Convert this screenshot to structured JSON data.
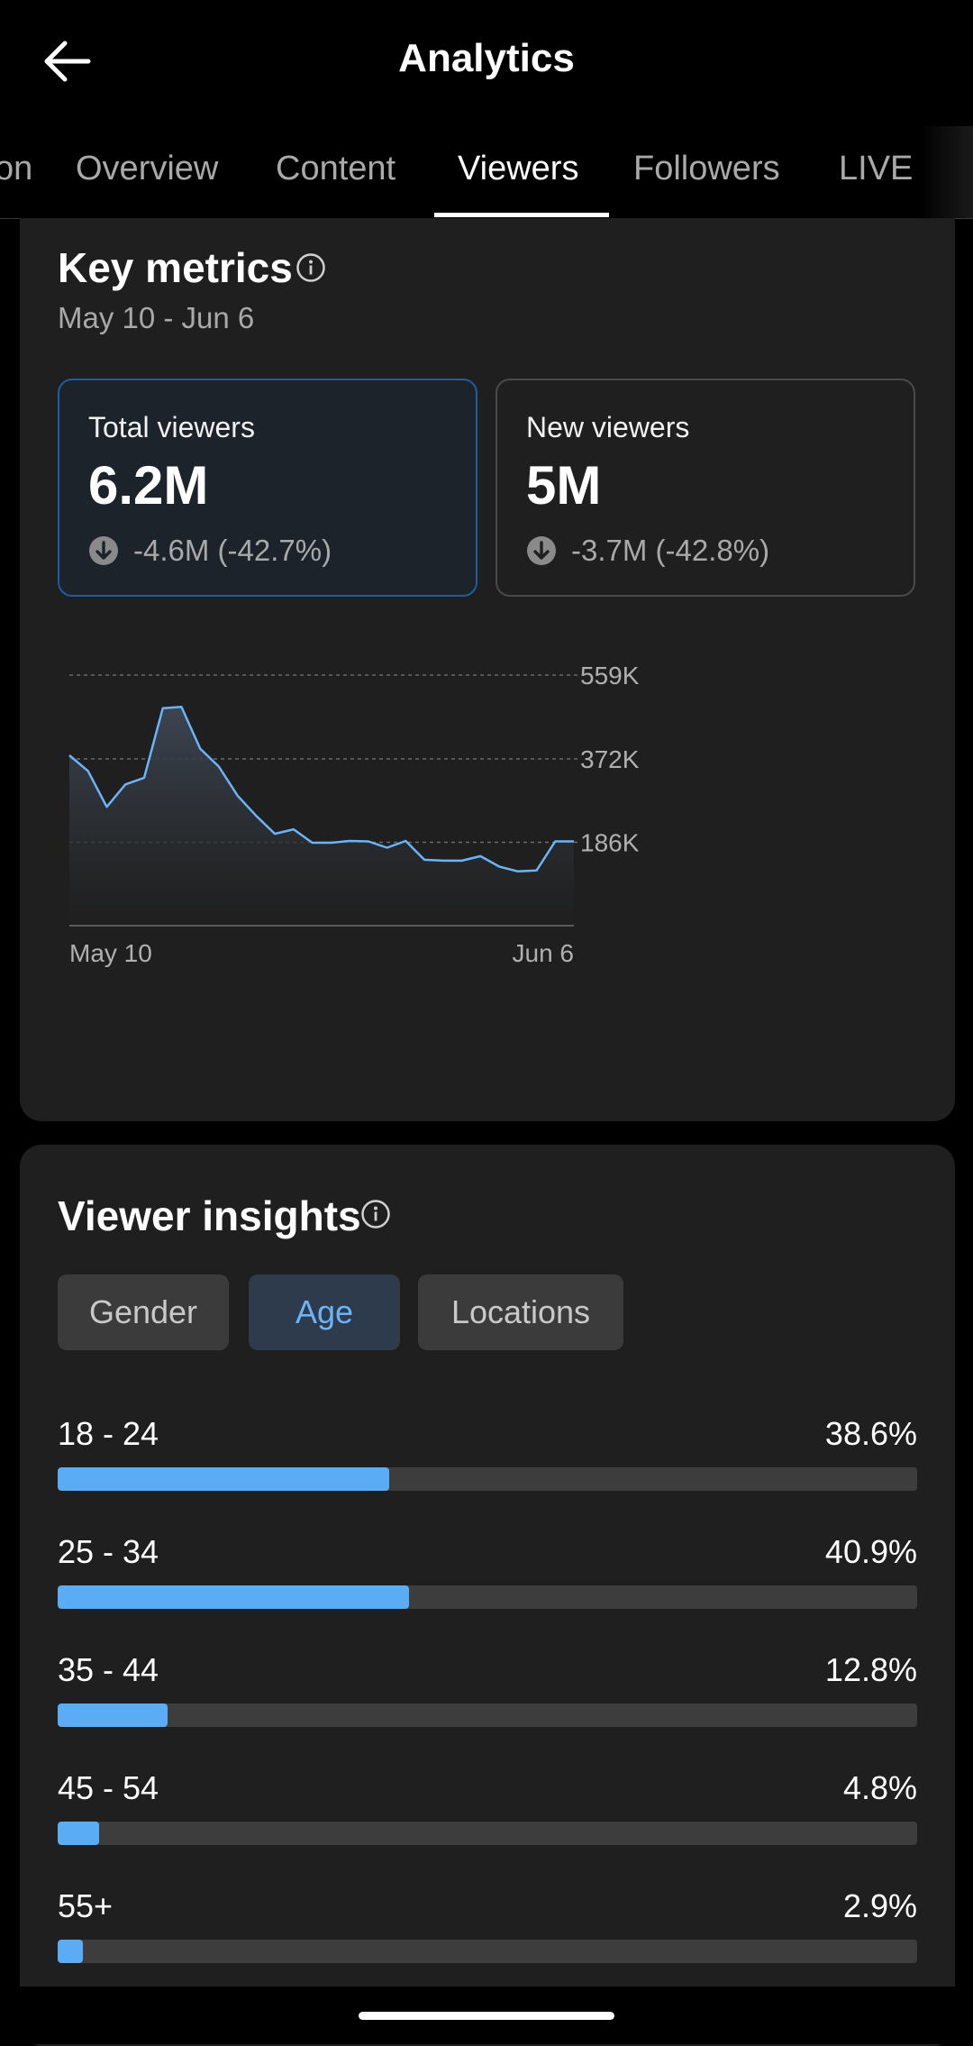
{
  "header": {
    "title": "Analytics",
    "back_icon": "arrow-left-icon"
  },
  "tabs": [
    {
      "label": "on",
      "active": false
    },
    {
      "label": "Overview",
      "active": false
    },
    {
      "label": "Content",
      "active": false
    },
    {
      "label": "Viewers",
      "active": true
    },
    {
      "label": "Followers",
      "active": false
    },
    {
      "label": "LIVE",
      "active": false
    }
  ],
  "key_metrics": {
    "title": "Key metrics",
    "date_range": "May 10 - Jun 6",
    "cards": [
      {
        "label": "Total viewers",
        "value": "6.2M",
        "change": "-4.6M (-42.7%)",
        "selected": true
      },
      {
        "label": "New viewers",
        "value": "5M",
        "change": "-3.7M (-42.8%)",
        "selected": false
      }
    ]
  },
  "chart_data": {
    "type": "area",
    "title": "",
    "xlabel": "",
    "ylabel": "",
    "x_tick_labels": [
      "May 10",
      "Jun 6"
    ],
    "y_tick_labels": [
      "559K",
      "372K",
      "186K"
    ],
    "y_ticks": [
      559000,
      372000,
      186000
    ],
    "ylim": [
      0,
      559000
    ],
    "grid": true,
    "line_color": "#6cb4f8",
    "series": [
      {
        "values": [
          380000,
          345000,
          265000,
          315000,
          330000,
          485000,
          488000,
          395000,
          355000,
          290000,
          245000,
          205000,
          215000,
          185000,
          185000,
          189000,
          188000,
          174000,
          189000,
          147000,
          145000,
          145000,
          155000,
          132000,
          121000,
          123000,
          188000,
          188000
        ]
      }
    ]
  },
  "viewer_insights": {
    "title": "Viewer insights",
    "chips": [
      {
        "label": "Gender",
        "active": false
      },
      {
        "label": "Age",
        "active": true
      },
      {
        "label": "Locations",
        "active": false
      }
    ],
    "age_groups": [
      {
        "label": "18 - 24",
        "percent": "38.6%",
        "value": 38.6
      },
      {
        "label": "25 - 34",
        "percent": "40.9%",
        "value": 40.9
      },
      {
        "label": "35 - 44",
        "percent": "12.8%",
        "value": 12.8
      },
      {
        "label": "45 - 54",
        "percent": "4.8%",
        "value": 4.8
      },
      {
        "label": "55+",
        "percent": "2.9%",
        "value": 2.9
      }
    ]
  },
  "colors": {
    "accent": "#5aacf4",
    "selected_border": "#1e5d9e",
    "background": "#000000",
    "card": "#1f1f1f"
  }
}
